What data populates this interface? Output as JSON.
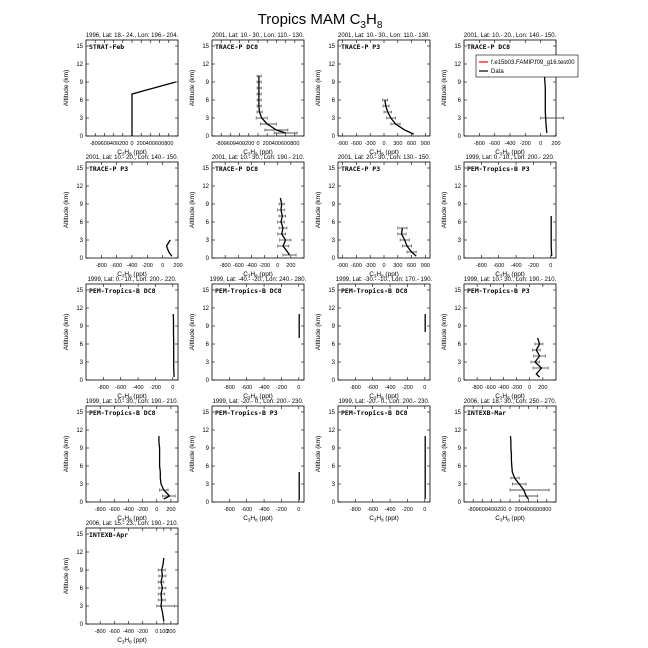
{
  "figure": {
    "title_main": "Tropics MAM C",
    "title_sub": "3",
    "title_mid": "H",
    "title_sub2": "8"
  },
  "axis_text": {
    "ylabel": "Altitude (km)",
    "xlabel_c": "C",
    "xlabel_sub1": "3",
    "xlabel_h": "H",
    "xlabel_sub2": "8",
    "xlabel_unit": " (ppt)"
  },
  "legend": {
    "model_label": "f.e15b03.FAMIP.f09_g16.test00",
    "data_label": "Data",
    "model_color": "#ff0000",
    "data_color": "#000000"
  },
  "chart_data": [
    {
      "type": "line",
      "header": "1996, Lat: 18.- 24., Lon: 196.- 204.",
      "campaign": "STRAT-Feb",
      "xlim": [
        -1000,
        1000
      ],
      "xticks": [
        -800,
        -600,
        -400,
        -200,
        0,
        200,
        400,
        600,
        800
      ],
      "ylim": [
        0,
        16
      ],
      "yticks": [
        0,
        3,
        6,
        9,
        12,
        15
      ],
      "data": [
        [
          0,
          0
        ],
        [
          0,
          1
        ],
        [
          0,
          2
        ],
        [
          0,
          3
        ],
        [
          0,
          4
        ],
        [
          0,
          5
        ],
        [
          0,
          6
        ],
        [
          0,
          7
        ],
        [
          950,
          9
        ]
      ],
      "errors": []
    },
    {
      "type": "line",
      "header": "2001, Lat: 10.- 30., Lon: 110.- 130.",
      "campaign": "TRACE-P DC8",
      "xlim": [
        -1000,
        1000
      ],
      "xticks": [
        -800,
        -600,
        -400,
        -200,
        0,
        200,
        400,
        600,
        800
      ],
      "ylim": [
        0,
        16
      ],
      "yticks": [
        0,
        3,
        6,
        9,
        12,
        15
      ],
      "data": [
        [
          600,
          0.5
        ],
        [
          400,
          1
        ],
        [
          200,
          2
        ],
        [
          80,
          3
        ],
        [
          30,
          4
        ],
        [
          20,
          5
        ],
        [
          20,
          6
        ],
        [
          20,
          7
        ],
        [
          20,
          8
        ],
        [
          20,
          9
        ],
        [
          20,
          10
        ]
      ],
      "errors": [
        [
          0.5,
          350,
          850
        ],
        [
          1,
          150,
          650
        ],
        [
          2,
          50,
          400
        ],
        [
          3,
          -40,
          200
        ],
        [
          4,
          -20,
          90
        ],
        [
          5,
          -20,
          70
        ],
        [
          6,
          -20,
          70
        ],
        [
          7,
          -20,
          70
        ],
        [
          8,
          -20,
          70
        ],
        [
          9,
          -20,
          70
        ],
        [
          10,
          -20,
          70
        ]
      ]
    },
    {
      "type": "line",
      "header": "2001, Lat: 10.- 30., Lon: 110.- 130.",
      "campaign": "TRACE-P P3",
      "xlim": [
        -1000,
        1000
      ],
      "xticks": [
        -900,
        -600,
        -300,
        0,
        300,
        600,
        900
      ],
      "ylim": [
        0,
        16
      ],
      "yticks": [
        0,
        3,
        6,
        9,
        12,
        15
      ],
      "data": [
        [
          650,
          0.3
        ],
        [
          450,
          1
        ],
        [
          250,
          2
        ],
        [
          150,
          3
        ],
        [
          80,
          4
        ],
        [
          40,
          5
        ],
        [
          20,
          6
        ]
      ],
      "errors": [
        [
          2,
          150,
          350
        ],
        [
          3,
          60,
          250
        ],
        [
          4,
          0,
          160
        ],
        [
          5,
          -20,
          110
        ],
        [
          6,
          -30,
          80
        ]
      ]
    },
    {
      "type": "line",
      "header": "2001, Lat: 10.- 20., Lon: 140.- 150.",
      "campaign": "TRACE-P DC8",
      "xlim": [
        -1000,
        200
      ],
      "xticks": [
        -800,
        -600,
        -400,
        -200,
        0,
        200
      ],
      "ylim": [
        0,
        16
      ],
      "yticks": [
        0,
        3,
        6,
        9,
        12,
        15
      ],
      "data": [
        [
          80,
          0.5
        ],
        [
          70,
          2
        ],
        [
          60,
          4
        ],
        [
          60,
          6
        ],
        [
          60,
          8
        ],
        [
          50,
          10
        ]
      ],
      "errors": [
        [
          3,
          0,
          300
        ]
      ]
    },
    {
      "type": "line",
      "header": "2001, Lat: 10.- 20., Lon: 140.- 150.",
      "campaign": "TRACE-P P3",
      "xlim": [
        -1000,
        200
      ],
      "xticks": [
        -800,
        -600,
        -400,
        -200,
        0,
        200
      ],
      "ylim": [
        0,
        16
      ],
      "yticks": [
        0,
        3,
        6,
        9,
        12,
        15
      ],
      "data": [
        [
          120,
          0.3
        ],
        [
          80,
          1
        ],
        [
          50,
          2
        ],
        [
          100,
          3
        ]
      ],
      "errors": []
    },
    {
      "type": "line",
      "header": "2001, Lat: 10.- 30., Lon: 190.- 210.",
      "campaign": "TRACE-P DC8",
      "xlim": [
        -1000,
        400
      ],
      "xticks": [
        -800,
        -600,
        -400,
        -200,
        0,
        200
      ],
      "ylim": [
        0,
        16
      ],
      "yticks": [
        0,
        3,
        6,
        9,
        12,
        15
      ],
      "data": [
        [
          180,
          0.5
        ],
        [
          150,
          1
        ],
        [
          80,
          2
        ],
        [
          120,
          3
        ],
        [
          60,
          4
        ],
        [
          80,
          5
        ],
        [
          50,
          6
        ],
        [
          70,
          7
        ],
        [
          50,
          8
        ],
        [
          60,
          9
        ],
        [
          40,
          10
        ]
      ],
      "errors": [
        [
          0.5,
          80,
          280
        ],
        [
          2,
          0,
          170
        ],
        [
          3,
          30,
          200
        ],
        [
          4,
          0,
          120
        ],
        [
          5,
          20,
          140
        ],
        [
          6,
          0,
          100
        ],
        [
          7,
          20,
          120
        ],
        [
          8,
          0,
          100
        ],
        [
          9,
          20,
          100
        ]
      ]
    },
    {
      "type": "line",
      "header": "2001, Lat: 20.- 30., Lon: 130.- 150.",
      "campaign": "TRACE-P P3",
      "xlim": [
        -1000,
        1000
      ],
      "xticks": [
        -900,
        -600,
        -300,
        0,
        300,
        600,
        900
      ],
      "ylim": [
        0,
        16
      ],
      "yticks": [
        0,
        3,
        6,
        9,
        12,
        15
      ],
      "data": [
        [
          700,
          0.3
        ],
        [
          600,
          1
        ],
        [
          500,
          2
        ],
        [
          450,
          3
        ],
        [
          380,
          4
        ],
        [
          400,
          5
        ]
      ],
      "errors": [
        [
          1,
          500,
          700
        ],
        [
          2,
          400,
          600
        ],
        [
          3,
          350,
          550
        ],
        [
          4,
          300,
          480
        ],
        [
          5,
          300,
          500
        ]
      ]
    },
    {
      "type": "line",
      "header": "1999, Lat: 0.- 10., Lon: 200.- 220.",
      "campaign": "PEM-Tropics-B P3",
      "xlim": [
        -1000,
        60
      ],
      "xticks": [
        -800,
        -600,
        -400,
        -200,
        0
      ],
      "ylim": [
        0,
        16
      ],
      "yticks": [
        0,
        3,
        6,
        9,
        12,
        15
      ],
      "data": [
        [
          10,
          0.3
        ],
        [
          5,
          2
        ],
        [
          5,
          4
        ],
        [
          5,
          6
        ],
        [
          5,
          7
        ]
      ],
      "errors": []
    },
    {
      "type": "line",
      "header": "1999, Lat: 0.- 10., Lon: 200.- 220.",
      "campaign": "PEM-Tropics-B DC8",
      "xlim": [
        -1000,
        60
      ],
      "xticks": [
        -800,
        -600,
        -400,
        -200,
        0
      ],
      "ylim": [
        0,
        16
      ],
      "yticks": [
        0,
        3,
        6,
        9,
        12,
        15
      ],
      "data": [
        [
          15,
          0.5
        ],
        [
          10,
          2
        ],
        [
          10,
          4
        ],
        [
          10,
          6
        ],
        [
          8,
          8
        ],
        [
          8,
          10
        ],
        [
          5,
          11
        ]
      ],
      "errors": []
    },
    {
      "type": "line",
      "header": "1999, Lat: -40.- -20., Lon: 240.- 280.",
      "campaign": "PEM-Tropics-B DC8",
      "xlim": [
        -1000,
        60
      ],
      "xticks": [
        -800,
        -600,
        -400,
        -200,
        0
      ],
      "ylim": [
        0,
        16
      ],
      "yticks": [
        0,
        3,
        6,
        9,
        12,
        15
      ],
      "data": [
        [
          5,
          7
        ],
        [
          5,
          9
        ],
        [
          5,
          11
        ]
      ],
      "errors": []
    },
    {
      "type": "line",
      "header": "1999, Lat: -30.- -10., Lon: 170.- 190.",
      "campaign": "PEM-Tropics-B DC8",
      "xlim": [
        -1000,
        60
      ],
      "xticks": [
        -800,
        -600,
        -400,
        -200,
        0
      ],
      "ylim": [
        0,
        16
      ],
      "yticks": [
        0,
        3,
        6,
        9,
        12,
        15
      ],
      "data": [
        [
          5,
          8
        ],
        [
          5,
          10
        ],
        [
          5,
          11
        ]
      ],
      "errors": []
    },
    {
      "type": "line",
      "header": "1999, Lat: 10.- 30., Lon: 190.- 210.",
      "campaign": "PEM-Tropics-B P3",
      "xlim": [
        -1000,
        400
      ],
      "xticks": [
        -800,
        -600,
        -400,
        -200,
        0,
        200
      ],
      "ylim": [
        0,
        16
      ],
      "yticks": [
        0,
        3,
        6,
        9,
        12,
        15
      ],
      "data": [
        [
          150,
          0.5
        ],
        [
          100,
          1
        ],
        [
          180,
          2
        ],
        [
          80,
          3
        ],
        [
          150,
          4
        ],
        [
          100,
          5
        ],
        [
          150,
          6
        ],
        [
          120,
          7
        ]
      ],
      "errors": [
        [
          2,
          50,
          280
        ],
        [
          3,
          20,
          150
        ],
        [
          4,
          60,
          240
        ],
        [
          5,
          40,
          160
        ],
        [
          6,
          80,
          200
        ]
      ]
    },
    {
      "type": "line",
      "header": "1999, Lat: 10.- 30., Lon: 190.- 210.",
      "campaign": "PEM-Tropics-B DC8",
      "xlim": [
        -1000,
        300
      ],
      "xticks": [
        -800,
        -600,
        -400,
        -200,
        0,
        200
      ],
      "ylim": [
        0,
        16
      ],
      "yticks": [
        0,
        3,
        6,
        9,
        12,
        15
      ],
      "data": [
        [
          100,
          0.5
        ],
        [
          180,
          1
        ],
        [
          100,
          2
        ],
        [
          60,
          3
        ],
        [
          50,
          4
        ],
        [
          50,
          5
        ],
        [
          40,
          6
        ],
        [
          40,
          7
        ],
        [
          40,
          8
        ],
        [
          40,
          9
        ],
        [
          30,
          10
        ],
        [
          30,
          11
        ]
      ],
      "errors": [
        [
          1,
          80,
          260
        ],
        [
          2,
          40,
          160
        ]
      ]
    },
    {
      "type": "line",
      "header": "1999, Lat: -20.- 0., Lon: 200.- 230.",
      "campaign": "PEM-Tropics-B P3",
      "xlim": [
        -1000,
        60
      ],
      "xticks": [
        -800,
        -600,
        -400,
        -200,
        0
      ],
      "ylim": [
        0,
        16
      ],
      "yticks": [
        0,
        3,
        6,
        9,
        12,
        15
      ],
      "data": [
        [
          5,
          0.3
        ],
        [
          5,
          2
        ],
        [
          5,
          4
        ],
        [
          5,
          5
        ]
      ],
      "errors": []
    },
    {
      "type": "line",
      "header": "1999, Lat: -20.- 0., Lon: 200.- 230.",
      "campaign": "PEM-Tropics-B DC8",
      "xlim": [
        -1000,
        60
      ],
      "xticks": [
        -800,
        -600,
        -400,
        -200,
        0
      ],
      "ylim": [
        0,
        16
      ],
      "yticks": [
        0,
        3,
        6,
        9,
        12,
        15
      ],
      "data": [
        [
          5,
          0.5
        ],
        [
          5,
          2
        ],
        [
          5,
          4
        ],
        [
          5,
          6
        ],
        [
          5,
          8
        ],
        [
          5,
          10
        ],
        [
          5,
          11
        ]
      ],
      "errors": []
    },
    {
      "type": "line",
      "header": "2006, Lat: 18.- 30., Lon: 250.- 270.",
      "campaign": "INTEXB-Mar",
      "xlim": [
        -1000,
        1000
      ],
      "xticks": [
        -800,
        -600,
        -400,
        -200,
        0,
        200,
        400,
        600,
        800
      ],
      "ylim": [
        0,
        16
      ],
      "yticks": [
        0,
        3,
        6,
        9,
        12,
        15
      ],
      "data": [
        [
          400,
          0.5
        ],
        [
          350,
          1
        ],
        [
          300,
          2
        ],
        [
          200,
          3
        ],
        [
          100,
          4
        ],
        [
          50,
          5
        ],
        [
          40,
          6
        ],
        [
          30,
          7
        ],
        [
          30,
          8
        ],
        [
          20,
          9
        ],
        [
          20,
          10
        ],
        [
          10,
          11
        ]
      ],
      "errors": [
        [
          1,
          200,
          600
        ],
        [
          2,
          0,
          850
        ],
        [
          3,
          50,
          350
        ],
        [
          4,
          20,
          200
        ]
      ]
    },
    {
      "type": "line",
      "header": "2006, Lat: 15.- 23., Lon: 190.- 210.",
      "campaign": "INTEXB-Apr",
      "xlim": [
        -1000,
        300
      ],
      "xticks": [
        -800,
        -600,
        -400,
        -200,
        0,
        100,
        200
      ],
      "ylim": [
        0,
        16
      ],
      "yticks": [
        0,
        3,
        6,
        9,
        12,
        15
      ],
      "data": [
        [
          100,
          0.5
        ],
        [
          80,
          2
        ],
        [
          60,
          3
        ],
        [
          70,
          4
        ],
        [
          60,
          5
        ],
        [
          80,
          6
        ],
        [
          60,
          7
        ],
        [
          80,
          8
        ],
        [
          70,
          9
        ],
        [
          90,
          10
        ],
        [
          100,
          11
        ]
      ],
      "errors": [
        [
          3,
          0,
          250
        ],
        [
          4,
          20,
          120
        ],
        [
          5,
          20,
          110
        ],
        [
          6,
          30,
          130
        ],
        [
          7,
          20,
          100
        ],
        [
          8,
          30,
          130
        ],
        [
          9,
          20,
          120
        ]
      ]
    }
  ]
}
